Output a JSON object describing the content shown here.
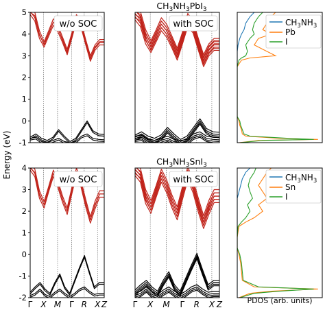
{
  "figure": {
    "ylabel": "Energy (eV)",
    "pdos_xlabel": "PDOS (arb. units)",
    "kpath": [
      "Γ",
      "X",
      "M",
      "Γ",
      "R",
      "X",
      "Z"
    ]
  },
  "chart_data": [
    {
      "type": "line",
      "title": "CH3NH3PbI3",
      "title_base": "CH",
      "title_sub1": "3",
      "title_mid": "NH",
      "title_sub2": "3",
      "title_end": "PbI",
      "title_sub3": "3",
      "ylabel": "Energy (eV)",
      "ylim": [
        -1,
        5
      ],
      "yticks": [
        -1,
        0,
        1,
        2,
        3,
        4,
        5
      ],
      "panels": [
        {
          "label": "w/o SOC",
          "x": [
            "Γ",
            "X",
            "M",
            "Γ",
            "R",
            "X",
            "Z"
          ],
          "conduction_bands": [
            [
              4.9,
              4.6,
              3.8,
              3.4,
              3.9,
              4.4,
              4.1,
              3.6,
              3.05,
              3.8,
              4.6,
              4.3,
              3.5,
              2.75,
              3.25,
              3.5,
              3.5
            ],
            [
              5.0,
              4.85,
              4.0,
              3.5,
              4.0,
              4.55,
              4.25,
              3.7,
              3.15,
              3.9,
              4.75,
              4.4,
              3.6,
              2.85,
              3.35,
              3.6,
              3.6
            ]
          ],
          "valence_bands": [
            [
              -0.75,
              -0.6,
              -0.8,
              -0.9,
              -0.75,
              -0.4,
              -0.7,
              -0.95,
              -0.8,
              -0.4,
              0.0,
              -0.45,
              -0.6,
              -0.62
            ],
            [
              -0.8,
              -0.75,
              -0.95,
              -1.0,
              -0.9,
              -0.8,
              -0.95,
              -1.0,
              -0.95,
              -0.7,
              -0.6,
              -0.8,
              -0.85,
              -0.87
            ]
          ]
        },
        {
          "label": "with SOC",
          "x": [
            "Γ",
            "X",
            "M",
            "Γ",
            "R",
            "X",
            "Z"
          ],
          "conduction_bands": [
            [
              4.9,
              4.6,
              3.8,
              3.4,
              3.9,
              4.4,
              4.1,
              3.6,
              3.05,
              3.8,
              4.6,
              4.3,
              3.5,
              2.75,
              3.25,
              3.5,
              3.5
            ],
            [
              5.0,
              4.85,
              4.0,
              3.5,
              4.0,
              4.55,
              4.25,
              3.7,
              3.15,
              3.9,
              4.75,
              4.4,
              3.6,
              2.85,
              3.35,
              3.6,
              3.6
            ]
          ],
          "valence_bands": [
            [
              -0.75,
              -0.6,
              -0.8,
              -0.9,
              -0.75,
              -0.4,
              -0.7,
              -0.95,
              -0.8,
              -0.4,
              0.0,
              -0.45,
              -0.6,
              -0.62
            ],
            [
              -0.8,
              -0.75,
              -0.95,
              -1.0,
              -0.9,
              -0.8,
              -0.95,
              -1.0,
              -0.95,
              -0.7,
              -0.6,
              -0.8,
              -0.85,
              -0.87
            ]
          ]
        }
      ],
      "pdos": {
        "xlabel": "PDOS (arb. units)",
        "legend": [
          "CH3NH3",
          "Pb",
          "I"
        ],
        "legend_base": "CH",
        "legend_sub1": "3",
        "legend_mid": "NH",
        "legend_sub2": "3",
        "legend_pb": "Pb",
        "legend_i": "I",
        "colors": [
          "#1f77b4",
          "#ff7f0e",
          "#2ca02c"
        ],
        "energy": [
          -1.0,
          -0.9,
          -0.85,
          -0.8,
          -0.7,
          -0.6,
          -0.4,
          -0.2,
          0.0,
          0.2,
          0.5,
          1.0,
          1.5,
          2.0,
          2.5,
          2.8,
          2.9,
          3.0,
          3.2,
          3.5,
          3.8,
          4.0,
          4.2,
          4.5,
          4.8,
          5.0
        ],
        "series": [
          {
            "name": "CH3NH3",
            "values": [
              0,
              0,
              0,
              0,
              0,
              0,
              0,
              0,
              0,
              0,
              0,
              0,
              0,
              0,
              0,
              0,
              0,
              0,
              0,
              0.01,
              0.03,
              0.05,
              0.08,
              0.1,
              0.15,
              0.2
            ]
          },
          {
            "name": "Pb",
            "values": [
              0.02,
              0.25,
              0.95,
              0.5,
              0.1,
              0.06,
              0.05,
              0.03,
              0.02,
              0,
              0,
              0,
              0,
              0,
              0,
              0.05,
              0.15,
              0.45,
              0.35,
              0.2,
              0.25,
              0.4,
              0.3,
              0.35,
              0.4,
              0.45
            ]
          },
          {
            "name": "I",
            "values": [
              0.03,
              0.3,
              0.9,
              0.6,
              0.15,
              0.08,
              0.06,
              0.04,
              0.03,
              0,
              0,
              0,
              0,
              0,
              0,
              0.02,
              0.05,
              0.1,
              0.12,
              0.1,
              0.15,
              0.2,
              0.18,
              0.2,
              0.25,
              0.3
            ]
          }
        ]
      }
    },
    {
      "type": "line",
      "title": "CH3NH3SnI3",
      "title_base": "CH",
      "title_sub1": "3",
      "title_mid": "NH",
      "title_sub2": "3",
      "title_end": "SnI",
      "title_sub3": "3",
      "ylabel": "Energy (eV)",
      "ylim": [
        -2,
        4
      ],
      "yticks": [
        -2,
        -1,
        0,
        1,
        2,
        3,
        4
      ],
      "panels": [
        {
          "label": "w/o SOC",
          "x": [
            "Γ",
            "X",
            "M",
            "Γ",
            "R",
            "X",
            "Z"
          ],
          "conduction_bands": [
            [
              3.9,
              3.6,
              2.6,
              2.15,
              2.9,
              3.6,
              3.1,
              2.4,
              1.85,
              2.8,
              3.7,
              3.1,
              2.2,
              1.45,
              2.1,
              2.65,
              2.65
            ],
            [
              4.0,
              3.8,
              2.8,
              2.3,
              3.0,
              3.75,
              3.25,
              2.55,
              2.0,
              2.95,
              3.85,
              3.25,
              2.4,
              1.6,
              2.3,
              2.8,
              2.8
            ]
          ],
          "valence_bands": [
            [
              -1.75,
              -1.5,
              -1.3,
              -1.6,
              -1.8,
              -1.3,
              -0.9,
              -1.5,
              -1.8,
              -1.2,
              -0.6,
              -0.05,
              -0.8,
              -1.5,
              -1.3,
              -1.3
            ],
            [
              -1.9,
              -1.8,
              -1.6,
              -1.85,
              -1.95,
              -1.75,
              -1.6,
              -1.8,
              -1.95,
              -1.8,
              -1.6,
              -1.5,
              -1.7,
              -1.85,
              -1.8,
              -1.8
            ]
          ]
        },
        {
          "label": "with SOC",
          "x": [
            "Γ",
            "X",
            "M",
            "Γ",
            "R",
            "X",
            "Z"
          ],
          "conduction_bands": [
            [
              3.9,
              3.6,
              2.6,
              2.15,
              2.9,
              3.6,
              3.1,
              2.4,
              1.85,
              2.8,
              3.7,
              3.1,
              2.2,
              1.45,
              2.1,
              2.65,
              2.65
            ],
            [
              4.0,
              3.8,
              2.8,
              2.3,
              3.0,
              3.75,
              3.25,
              2.55,
              2.0,
              2.95,
              3.85,
              3.25,
              2.4,
              1.6,
              2.3,
              2.8,
              2.8
            ]
          ],
          "valence_bands": [
            [
              -1.75,
              -1.5,
              -1.3,
              -1.6,
              -1.8,
              -1.3,
              -0.9,
              -1.5,
              -1.8,
              -1.2,
              -0.6,
              -0.05,
              -0.8,
              -1.5,
              -1.3,
              -1.3
            ],
            [
              -1.9,
              -1.8,
              -1.6,
              -1.85,
              -1.95,
              -1.75,
              -1.6,
              -1.8,
              -1.95,
              -1.8,
              -1.6,
              -1.5,
              -1.7,
              -1.85,
              -1.8,
              -1.8
            ]
          ]
        }
      ],
      "pdos": {
        "xlabel": "PDOS (arb. units)",
        "legend": [
          "CH3NH3",
          "Sn",
          "I"
        ],
        "legend_base": "CH",
        "legend_sub1": "3",
        "legend_mid": "NH",
        "legend_sub2": "3",
        "legend_pb": "Sn",
        "legend_i": "I",
        "colors": [
          "#1f77b4",
          "#ff7f0e",
          "#2ca02c"
        ],
        "energy": [
          -2.0,
          -1.8,
          -1.7,
          -1.6,
          -1.5,
          -1.2,
          -0.8,
          -0.4,
          0.0,
          0.3,
          0.8,
          1.3,
          1.5,
          1.7,
          2.0,
          2.3,
          2.6,
          2.9,
          3.2,
          3.5,
          3.8,
          4.0
        ],
        "series": [
          {
            "name": "CH3NH3",
            "values": [
              0,
              0,
              0,
              0,
              0,
              0,
              0,
              0,
              0,
              0,
              0,
              0,
              0,
              0,
              0,
              0,
              0,
              0.02,
              0.04,
              0.06,
              0.1,
              0.15
            ]
          },
          {
            "name": "Sn",
            "values": [
              0.02,
              0.15,
              0.4,
              0.95,
              0.2,
              0.06,
              0.05,
              0.04,
              0.02,
              0,
              0,
              0.02,
              0.1,
              0.2,
              0.3,
              0.25,
              0.35,
              0.3,
              0.25,
              0.3,
              0.35,
              0.4
            ]
          },
          {
            "name": "I",
            "values": [
              0.03,
              0.2,
              0.5,
              0.9,
              0.25,
              0.07,
              0.06,
              0.05,
              0.03,
              0,
              0,
              0.01,
              0.05,
              0.1,
              0.15,
              0.12,
              0.18,
              0.15,
              0.13,
              0.15,
              0.2,
              0.22
            ]
          }
        ]
      }
    }
  ],
  "colors": {
    "conduction": "#c0231a",
    "valence": "#000000"
  }
}
